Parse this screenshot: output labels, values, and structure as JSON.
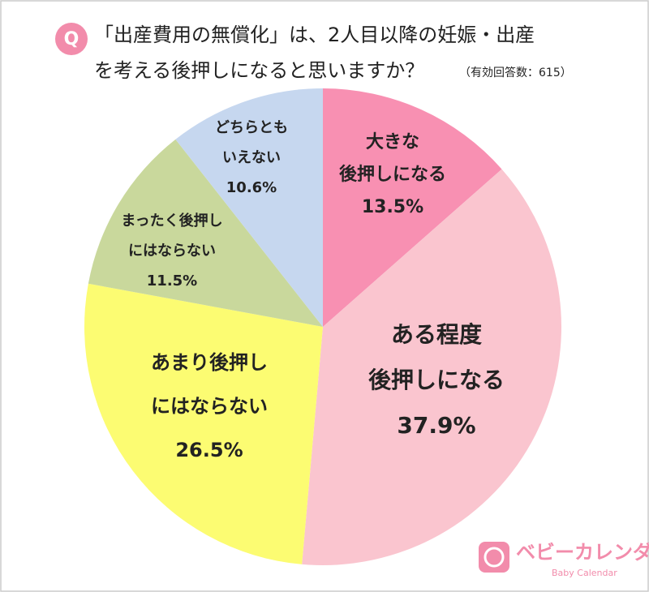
{
  "chart_data": {
    "type": "pie",
    "badge": "Q",
    "title": [
      "「出産費用の無償化」は、2人目以降の妊娠・出産",
      "を考える後押しになると思いますか？"
    ],
    "subtitle": "（有効回答数：615）",
    "categories": [
      "大きな\n後押しになる",
      "ある程度\n後押しになる",
      "あまり後押し\nにはならない",
      "まったく後押し\nにはならない",
      "どちらとも\nいえない"
    ],
    "values": [
      13.5,
      37.9,
      26.5,
      11.5,
      10.6
    ],
    "value_labels": [
      "13.5%",
      "37.9%",
      "26.5%",
      "11.5%",
      "10.6%"
    ],
    "colors": [
      "#f890b2",
      "#fac5cf",
      "#fcfc72",
      "#c9d89c",
      "#c6d7ef"
    ],
    "logo": {
      "name": "ベビーカレンダー",
      "sub": "Baby Calendar"
    }
  }
}
